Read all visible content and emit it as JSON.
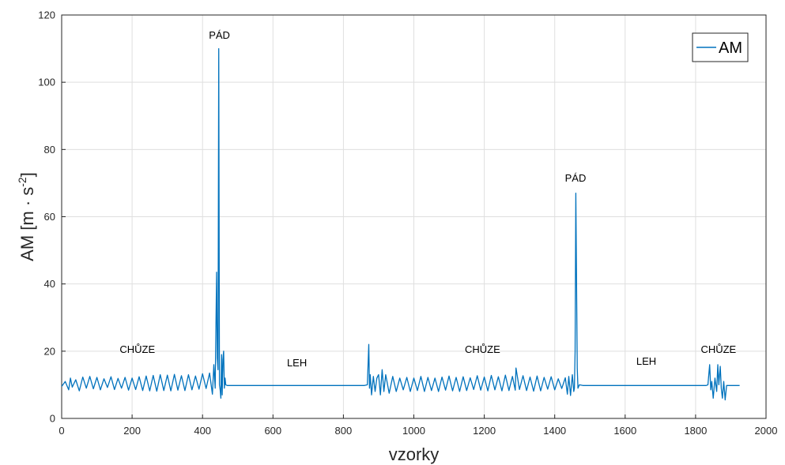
{
  "chart_data": {
    "type": "line",
    "title": "",
    "xlabel": "vzorky",
    "ylabel_main": "AM [m · s",
    "ylabel_exp": "-2",
    "ylabel_close": "]",
    "xlim": [
      0,
      2000
    ],
    "ylim": [
      0,
      120
    ],
    "x_ticks": [
      0,
      200,
      400,
      600,
      800,
      1000,
      1200,
      1400,
      1600,
      1800,
      2000
    ],
    "y_ticks": [
      0,
      20,
      40,
      60,
      80,
      100,
      120
    ],
    "grid": true,
    "legend_position": "top-right",
    "line_color": "#0072BD",
    "series": [
      {
        "name": "AM",
        "x": [
          0,
          10,
          20,
          25,
          30,
          40,
          50,
          60,
          70,
          80,
          90,
          100,
          110,
          120,
          130,
          140,
          150,
          160,
          170,
          180,
          190,
          200,
          210,
          220,
          230,
          240,
          250,
          260,
          270,
          280,
          290,
          300,
          310,
          320,
          330,
          340,
          350,
          360,
          370,
          380,
          390,
          400,
          410,
          420,
          428,
          432,
          436,
          440,
          442,
          444,
          446,
          448,
          450,
          452,
          454,
          456,
          458,
          460,
          462,
          464,
          466,
          470,
          480,
          500,
          600,
          700,
          800,
          860,
          868,
          872,
          874,
          876,
          880,
          885,
          890,
          895,
          900,
          905,
          910,
          915,
          920,
          930,
          940,
          950,
          960,
          970,
          980,
          990,
          1000,
          1010,
          1020,
          1030,
          1040,
          1050,
          1060,
          1070,
          1080,
          1090,
          1100,
          1110,
          1120,
          1130,
          1140,
          1150,
          1160,
          1170,
          1180,
          1190,
          1200,
          1210,
          1220,
          1230,
          1240,
          1250,
          1260,
          1270,
          1280,
          1288,
          1290,
          1300,
          1310,
          1320,
          1330,
          1340,
          1350,
          1360,
          1370,
          1380,
          1390,
          1400,
          1410,
          1420,
          1430,
          1436,
          1440,
          1445,
          1450,
          1454,
          1456,
          1458,
          1460,
          1462,
          1464,
          1466,
          1470,
          1480,
          1500,
          1600,
          1700,
          1800,
          1830,
          1835,
          1840,
          1843,
          1846,
          1850,
          1855,
          1860,
          1863,
          1866,
          1870,
          1873,
          1876,
          1880,
          1884,
          1888,
          1892,
          1900,
          1925
        ],
        "y": [
          9.5,
          11,
          8.5,
          12,
          9.3,
          11.5,
          8.2,
          12.3,
          9,
          12.5,
          8.8,
          12.2,
          8.5,
          11.8,
          9.2,
          12.4,
          8.6,
          11.9,
          9,
          12.2,
          8.4,
          12,
          8.6,
          12.4,
          8.3,
          12.6,
          8.2,
          12.8,
          8.1,
          13,
          8.3,
          12.9,
          8.2,
          13.1,
          8.4,
          12.7,
          8.3,
          13,
          8.5,
          12.6,
          8.7,
          13.3,
          8.9,
          13.5,
          7.2,
          16,
          9,
          43.5,
          18,
          14.5,
          110,
          10,
          8.5,
          6,
          19,
          7,
          17.5,
          20,
          9,
          12,
          10,
          9.8,
          9.8,
          9.8,
          9.8,
          9.8,
          9.8,
          9.8,
          10,
          22,
          9,
          13,
          7,
          12.5,
          8,
          12,
          13,
          7,
          14.5,
          8,
          13,
          7.5,
          12.5,
          8,
          12,
          8.5,
          12.2,
          8,
          12,
          8.3,
          12.5,
          8,
          12.2,
          8.3,
          12,
          8,
          12.3,
          8.4,
          12.6,
          8.2,
          12.2,
          8,
          12.4,
          8.3,
          12.1,
          8.6,
          12.7,
          8.4,
          12.3,
          8.2,
          12.8,
          8.5,
          12.4,
          8.2,
          12.9,
          8.3,
          12.5,
          8.4,
          15,
          8.6,
          12.7,
          8.3,
          12.3,
          8.1,
          12.6,
          8.2,
          12.2,
          8.7,
          12.4,
          8.5,
          11.8,
          8.9,
          12.1,
          7.2,
          12.5,
          6.8,
          13,
          8,
          9,
          20,
          67,
          41,
          15,
          9,
          10,
          9.8,
          9.8,
          9.8,
          9.8,
          9.8,
          9.8,
          10,
          16,
          8.5,
          11,
          6,
          12,
          8,
          16,
          10,
          15.5,
          9,
          6,
          11,
          5.5,
          9.8,
          9.8,
          9.8,
          9.8
        ]
      }
    ],
    "annotations": [
      {
        "text": "PÁD",
        "x": 448,
        "y": 113
      },
      {
        "text": "PÁD",
        "x": 1459,
        "y": 70.5
      },
      {
        "text": "CHŮZE",
        "x": 215,
        "y": 19.5
      },
      {
        "text": "LEH",
        "x": 668,
        "y": 15.5
      },
      {
        "text": "CHŮZE",
        "x": 1195,
        "y": 19.5
      },
      {
        "text": "LEH",
        "x": 1660,
        "y": 16
      },
      {
        "text": "CHŮZE",
        "x": 1865,
        "y": 19.5
      }
    ]
  }
}
